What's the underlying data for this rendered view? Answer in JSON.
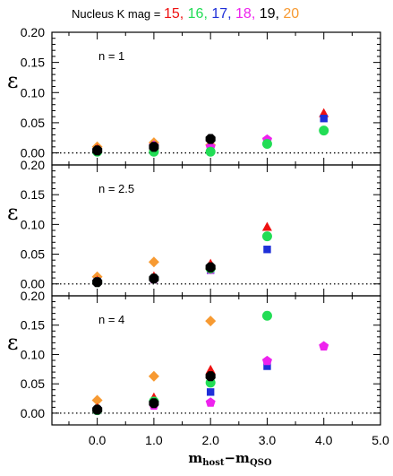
{
  "legend": {
    "prefix": "Nucleus K mag = ",
    "items": [
      {
        "label": "15",
        "color": "#ee1111"
      },
      {
        "label": "16",
        "color": "#22dd55"
      },
      {
        "label": "17",
        "color": "#1e2fd8"
      },
      {
        "label": "18",
        "color": "#ee22ee"
      },
      {
        "label": "19",
        "color": "#000000"
      },
      {
        "label": "20",
        "color": "#f79a32"
      }
    ],
    "separators": [
      ",",
      ",",
      ",",
      ",",
      ","
    ]
  },
  "chart_data": {
    "type": "scatter",
    "xlabel": {
      "main": "m",
      "sub1": "host",
      "dash": "−m",
      "sub2": "QSO"
    },
    "ylabel": "ε",
    "xlim": [
      -0.8,
      5.0
    ],
    "x_ticks": [
      "0.0",
      "1.0",
      "2.0",
      "3.0",
      "4.0",
      "5.0"
    ],
    "x_tick_values": [
      0,
      1,
      2,
      3,
      4,
      5
    ],
    "y_ticks": [
      "0.00",
      "0.05",
      "0.10",
      "0.15",
      "0.20"
    ],
    "y_tick_values": [
      0,
      0.05,
      0.1,
      0.15,
      0.2
    ],
    "ylim": [
      -0.02,
      0.2
    ],
    "reference_line_y": 0,
    "series_styles": [
      {
        "mag": "15",
        "color": "#ee1111",
        "marker": "triangle"
      },
      {
        "mag": "16",
        "color": "#22dd55",
        "marker": "circle"
      },
      {
        "mag": "17",
        "color": "#1e2fd8",
        "marker": "square"
      },
      {
        "mag": "18",
        "color": "#ee22ee",
        "marker": "pentagon"
      },
      {
        "mag": "19",
        "color": "#000000",
        "marker": "octagon"
      },
      {
        "mag": "20",
        "color": "#f79a32",
        "marker": "diamond"
      }
    ],
    "panels": [
      {
        "label": "n = 1",
        "series": [
          {
            "mag": "20",
            "points": [
              [
                0,
                0.01
              ],
              [
                1,
                0.017
              ],
              [
                2,
                0.013
              ]
            ]
          },
          {
            "mag": "15",
            "points": [
              [
                0,
                0.006
              ],
              [
                1,
                0.01
              ],
              [
                2,
                0.008
              ],
              [
                4,
                0.065
              ]
            ]
          },
          {
            "mag": "17",
            "points": [
              [
                0,
                0.004
              ],
              [
                1,
                0.007
              ],
              [
                2,
                0.006
              ],
              [
                4,
                0.057
              ]
            ]
          },
          {
            "mag": "18",
            "points": [
              [
                0,
                0.004
              ],
              [
                1,
                0.012
              ],
              [
                2,
                0.01
              ],
              [
                3,
                0.022
              ]
            ]
          },
          {
            "mag": "16",
            "points": [
              [
                0,
                0.002
              ],
              [
                1,
                0.002
              ],
              [
                2,
                0.002
              ],
              [
                3,
                0.015
              ],
              [
                4,
                0.037
              ]
            ]
          },
          {
            "mag": "19",
            "points": [
              [
                0,
                0.004
              ],
              [
                1,
                0.01
              ],
              [
                2,
                0.023
              ]
            ]
          }
        ]
      },
      {
        "label": "n = 2.5",
        "series": [
          {
            "mag": "20",
            "points": [
              [
                0,
                0.012
              ],
              [
                1,
                0.037
              ],
              [
                2,
                0.025
              ]
            ]
          },
          {
            "mag": "15",
            "points": [
              [
                0,
                0.005
              ],
              [
                1,
                0.012
              ],
              [
                2,
                0.033
              ],
              [
                3,
                0.095
              ]
            ]
          },
          {
            "mag": "17",
            "points": [
              [
                0,
                0.004
              ],
              [
                1,
                0.009
              ],
              [
                2,
                0.023
              ],
              [
                3,
                0.058
              ]
            ]
          },
          {
            "mag": "18",
            "points": [
              [
                0,
                0.003
              ],
              [
                1,
                0.008
              ],
              [
                2,
                0.024
              ]
            ]
          },
          {
            "mag": "16",
            "points": [
              [
                0,
                0.003
              ],
              [
                1,
                0.009
              ],
              [
                2,
                0.026
              ],
              [
                3,
                0.08
              ]
            ]
          },
          {
            "mag": "19",
            "points": [
              [
                0,
                0.003
              ],
              [
                1,
                0.009
              ],
              [
                2,
                0.028
              ]
            ]
          }
        ]
      },
      {
        "label": "n = 4",
        "series": [
          {
            "mag": "20",
            "points": [
              [
                0,
                0.022
              ],
              [
                1,
                0.063
              ],
              [
                2,
                0.157
              ]
            ]
          },
          {
            "mag": "15",
            "points": [
              [
                0,
                0.008
              ],
              [
                1,
                0.026
              ],
              [
                2,
                0.073
              ]
            ]
          },
          {
            "mag": "17",
            "points": [
              [
                0,
                0.006
              ],
              [
                1,
                0.018
              ],
              [
                2,
                0.036
              ],
              [
                3,
                0.08
              ]
            ]
          },
          {
            "mag": "18",
            "points": [
              [
                0,
                0.005
              ],
              [
                1,
                0.013
              ],
              [
                2,
                0.018
              ],
              [
                3,
                0.089
              ],
              [
                4,
                0.114
              ]
            ]
          },
          {
            "mag": "16",
            "points": [
              [
                0,
                0.005
              ],
              [
                1,
                0.02
              ],
              [
                2,
                0.052
              ],
              [
                3,
                0.166
              ]
            ]
          },
          {
            "mag": "19",
            "points": [
              [
                0,
                0.006
              ],
              [
                1,
                0.017
              ],
              [
                2,
                0.063
              ]
            ]
          }
        ]
      }
    ]
  }
}
